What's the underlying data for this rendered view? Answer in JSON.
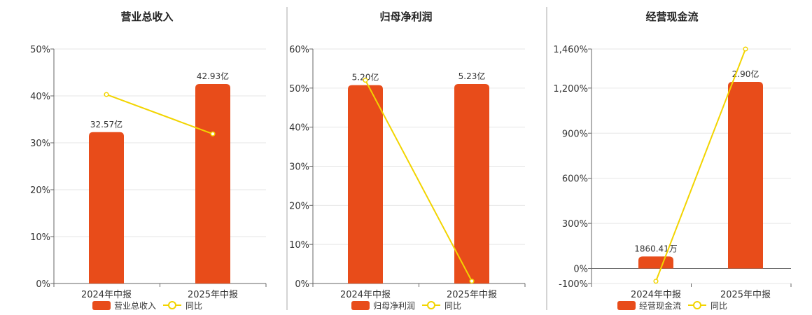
{
  "colors": {
    "bar": "#e84c1a",
    "line": "#f2d400",
    "grid": "#e6e6e6"
  },
  "chart_data": [
    {
      "type": "bar",
      "title": "营业总收入",
      "categories": [
        "2024年中报",
        "2025年中报"
      ],
      "ylim": [
        0,
        50
      ],
      "yticks": [
        "0%",
        "10%",
        "20%",
        "30%",
        "40%",
        "50%"
      ],
      "ytick_values": [
        0,
        10,
        20,
        30,
        40,
        50
      ],
      "grid": true,
      "legend_position": "bottom",
      "series": [
        {
          "name": "营业总收入",
          "kind": "bar",
          "values": [
            32.57,
            42.93
          ],
          "labels": [
            "32.57亿",
            "42.93亿"
          ],
          "unit": "亿"
        },
        {
          "name": "同比",
          "kind": "line",
          "values": [
            40.3,
            31.9
          ]
        }
      ]
    },
    {
      "type": "bar",
      "title": "归母净利润",
      "categories": [
        "2024年中报",
        "2025年中报"
      ],
      "ylim": [
        0,
        60
      ],
      "yticks": [
        "0%",
        "10%",
        "20%",
        "30%",
        "40%",
        "50%",
        "60%"
      ],
      "ytick_values": [
        0,
        10,
        20,
        30,
        40,
        50,
        60
      ],
      "grid": true,
      "legend_position": "bottom",
      "series": [
        {
          "name": "归母净利润",
          "kind": "bar",
          "values": [
            5.2,
            5.23
          ],
          "labels": [
            "5.20亿",
            "5.23亿"
          ],
          "unit": "亿"
        },
        {
          "name": "同比",
          "kind": "line",
          "values": [
            52.0,
            0.6
          ]
        }
      ]
    },
    {
      "type": "bar",
      "title": "经营现金流",
      "categories": [
        "2024年中报",
        "2025年中报"
      ],
      "ylim": [
        -100,
        1460
      ],
      "yticks": [
        "-100%",
        "0%",
        "300%",
        "600%",
        "900%",
        "1,200%",
        "1,460%"
      ],
      "ytick_values": [
        -100,
        0,
        300,
        600,
        900,
        1200,
        1460
      ],
      "grid": true,
      "legend_position": "bottom",
      "series": [
        {
          "name": "经营现金流",
          "kind": "bar",
          "values": [
            0.186041,
            2.9
          ],
          "labels": [
            "1860.41万",
            "2.90亿"
          ],
          "unit": "亿"
        },
        {
          "name": "同比",
          "kind": "line",
          "values": [
            -85,
            1460
          ]
        }
      ]
    }
  ]
}
